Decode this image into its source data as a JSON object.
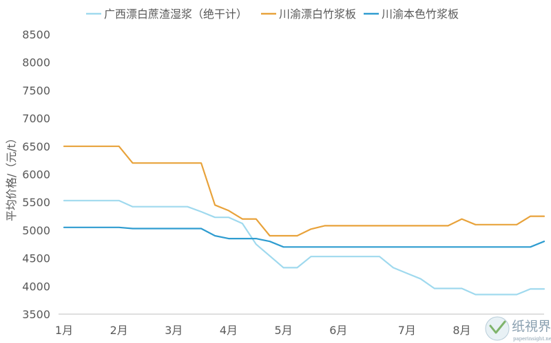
{
  "chart_data": {
    "type": "line",
    "ylabel": "平均价格/（元/t）",
    "xlabel": "",
    "ylim": [
      3500,
      8500
    ],
    "yticks": [
      3500,
      4000,
      4500,
      5000,
      5500,
      6000,
      6500,
      7000,
      7500,
      8000,
      8500
    ],
    "xlim": [
      0,
      35
    ],
    "x_tick_labels": [
      {
        "label": "1月",
        "x": 0
      },
      {
        "label": "2月",
        "x": 4
      },
      {
        "label": "3月",
        "x": 8
      },
      {
        "label": "4月",
        "x": 12
      },
      {
        "label": "5月",
        "x": 16
      },
      {
        "label": "6月",
        "x": 20
      },
      {
        "label": "7月",
        "x": 25
      },
      {
        "label": "8月",
        "x": 29
      }
    ],
    "grid": false,
    "legend_position": "top",
    "series": [
      {
        "name": "广西漂白蔗渣湿浆（绝干计）",
        "color": "#9fd9ee",
        "x": [
          0,
          3,
          4,
          5,
          6,
          7,
          8,
          9,
          10,
          11,
          12,
          13,
          14,
          15,
          16,
          17,
          18,
          19,
          20,
          21,
          22,
          23,
          24,
          25,
          26,
          27,
          28,
          29,
          30,
          31,
          32,
          33,
          34,
          35
        ],
        "values": [
          5530,
          5530,
          5530,
          5420,
          5420,
          5420,
          5420,
          5420,
          5330,
          5230,
          5230,
          5120,
          4750,
          4540,
          4330,
          4330,
          4530,
          4530,
          4530,
          4530,
          4530,
          4530,
          4330,
          4230,
          4130,
          3960,
          3960,
          3960,
          3850,
          3850,
          3850,
          3850,
          3950,
          3950
        ]
      },
      {
        "name": "川渝漂白竹浆板",
        "color": "#e8a23a",
        "x": [
          0,
          3,
          4,
          5,
          6,
          7,
          8,
          9,
          10,
          11,
          12,
          13,
          14,
          15,
          16,
          17,
          18,
          19,
          20,
          21,
          22,
          23,
          24,
          25,
          26,
          27,
          28,
          29,
          30,
          31,
          32,
          33,
          34,
          35
        ],
        "values": [
          6500,
          6500,
          6500,
          6200,
          6200,
          6200,
          6200,
          6200,
          6200,
          5450,
          5350,
          5200,
          5200,
          4900,
          4900,
          4900,
          5020,
          5080,
          5080,
          5080,
          5080,
          5080,
          5080,
          5080,
          5080,
          5080,
          5080,
          5200,
          5100,
          5100,
          5100,
          5100,
          5250,
          5250
        ]
      },
      {
        "name": "川渝本色竹浆板",
        "color": "#2e9cd0",
        "x": [
          0,
          3,
          4,
          5,
          6,
          7,
          8,
          9,
          10,
          11,
          12,
          13,
          14,
          15,
          16,
          17,
          18,
          19,
          20,
          21,
          22,
          23,
          24,
          25,
          26,
          27,
          28,
          29,
          30,
          31,
          32,
          33,
          34,
          35
        ],
        "values": [
          5050,
          5050,
          5050,
          5030,
          5030,
          5030,
          5030,
          5030,
          5030,
          4900,
          4850,
          4850,
          4850,
          4800,
          4700,
          4700,
          4700,
          4700,
          4700,
          4700,
          4700,
          4700,
          4700,
          4700,
          4700,
          4700,
          4700,
          4700,
          4700,
          4700,
          4700,
          4700,
          4700,
          4800
        ]
      }
    ]
  },
  "watermark": {
    "logo_text": "纸視界",
    "url_text": "paperinsight.net"
  }
}
